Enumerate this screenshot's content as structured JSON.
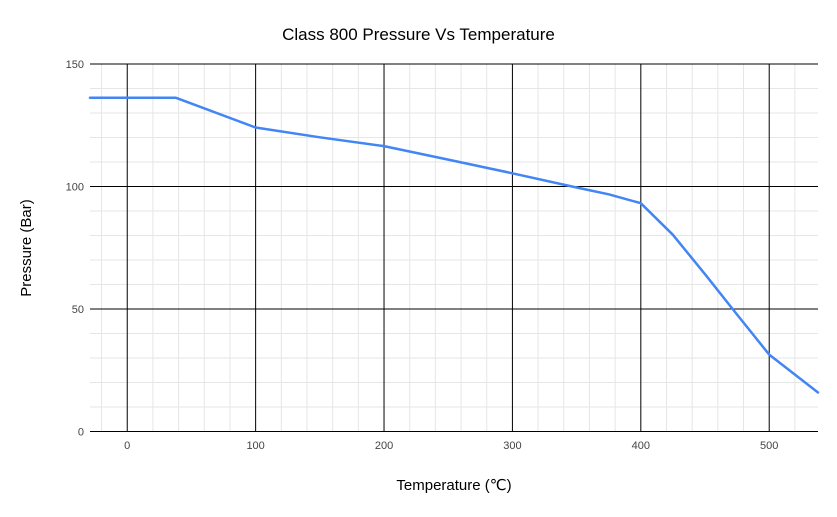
{
  "chart_data": {
    "type": "line",
    "title": "Class 800 Pressure Vs Temperature",
    "xlabel": "Temperature (℃)",
    "ylabel": "Pressure (Bar)",
    "x": [
      -29,
      38,
      100,
      150,
      200,
      250,
      300,
      350,
      375,
      400,
      425,
      450,
      475,
      500,
      538
    ],
    "y": [
      136.2,
      136.2,
      124.1,
      120.1,
      116.5,
      111.0,
      105.4,
      99.6,
      96.8,
      93.2,
      80.3,
      64.2,
      47.7,
      31.4,
      15.9
    ],
    "xlim": [
      -29,
      538
    ],
    "ylim": [
      0,
      150
    ],
    "x_major_ticks": [
      0,
      100,
      200,
      300,
      400,
      500
    ],
    "y_major_ticks": [
      0,
      50,
      100,
      150
    ],
    "x_minor_step": 20,
    "y_minor_step": 10,
    "grid": "major-and-minor",
    "legend": "none",
    "colors": {
      "line": "#4285f4",
      "major_grid": "#000000",
      "minor_grid": "#e6e6e6",
      "tick_label": "#444444",
      "title": "#202124",
      "axis_title": "#202124",
      "background": "#ffffff"
    }
  }
}
